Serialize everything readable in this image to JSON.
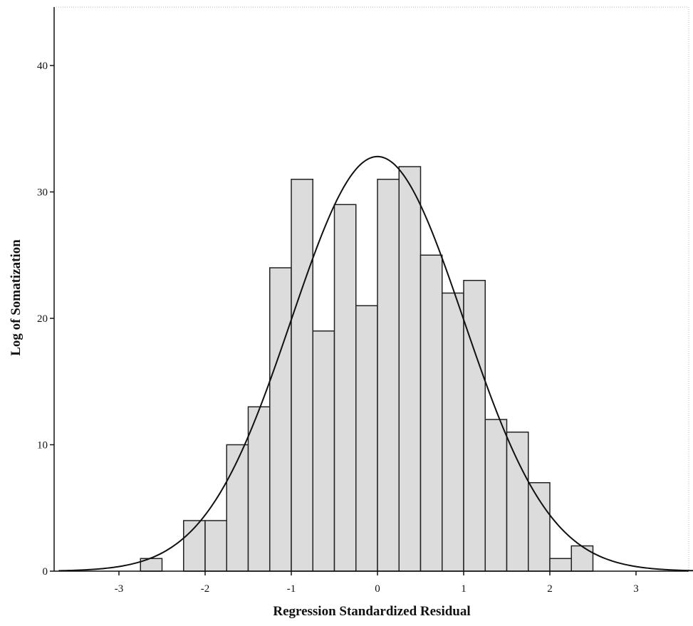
{
  "chart_data": {
    "type": "bar",
    "xlabel": "Regression Standardized Residual",
    "ylabel": "Log of Somatization",
    "xlim": [
      -3.7,
      3.7
    ],
    "ylim": [
      0,
      45
    ],
    "x_ticks": [
      -3,
      -2,
      -1,
      0,
      1,
      2,
      3
    ],
    "y_ticks": [
      0,
      10,
      20,
      30,
      40
    ],
    "bin_width": 0.25,
    "bins": [
      {
        "x0": -2.75,
        "x1": -2.5,
        "value": 1
      },
      {
        "x0": -2.25,
        "x1": -2.0,
        "value": 4
      },
      {
        "x0": -2.0,
        "x1": -1.75,
        "value": 4
      },
      {
        "x0": -1.75,
        "x1": -1.5,
        "value": 10
      },
      {
        "x0": -1.5,
        "x1": -1.25,
        "value": 13
      },
      {
        "x0": -1.25,
        "x1": -1.0,
        "value": 24
      },
      {
        "x0": -1.0,
        "x1": -0.75,
        "value": 31
      },
      {
        "x0": -0.75,
        "x1": -0.5,
        "value": 19
      },
      {
        "x0": -0.5,
        "x1": -0.25,
        "value": 29
      },
      {
        "x0": -0.25,
        "x1": 0.0,
        "value": 21
      },
      {
        "x0": 0.0,
        "x1": 0.25,
        "value": 31
      },
      {
        "x0": 0.25,
        "x1": 0.5,
        "value": 32
      },
      {
        "x0": 0.5,
        "x1": 0.75,
        "value": 25
      },
      {
        "x0": 0.75,
        "x1": 1.0,
        "value": 22
      },
      {
        "x0": 1.0,
        "x1": 1.25,
        "value": 23
      },
      {
        "x0": 1.25,
        "x1": 1.5,
        "value": 12
      },
      {
        "x0": 1.5,
        "x1": 1.75,
        "value": 11
      },
      {
        "x0": 1.75,
        "x1": 2.0,
        "value": 7
      },
      {
        "x0": 2.0,
        "x1": 2.25,
        "value": 1
      },
      {
        "x0": 2.25,
        "x1": 2.5,
        "value": 2
      }
    ],
    "normal_curve": {
      "mean": 0,
      "std_dev": 1,
      "peak": 32.8
    },
    "grid": false,
    "colors": {
      "bar_fill": "#dcdcdc",
      "bar_stroke": "#222222",
      "curve": "#111111"
    }
  }
}
